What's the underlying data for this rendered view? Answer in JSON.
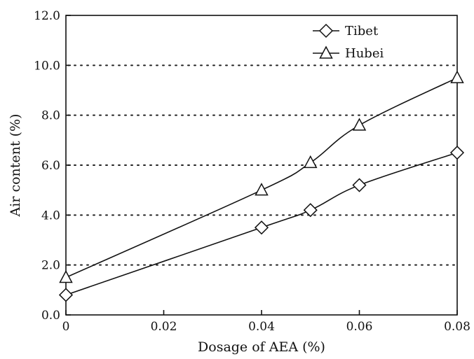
{
  "chart_data": {
    "type": "line",
    "xlabel": "Dosage of AEA (%)",
    "ylabel": "Air content (%)",
    "xlim": [
      0,
      0.08
    ],
    "ylim": [
      0,
      12
    ],
    "x_ticks": [
      "0",
      "0.02",
      "0.04",
      "0.06",
      "0.08"
    ],
    "y_ticks": [
      "0.0",
      "2.0",
      "4.0",
      "6.0",
      "8.0",
      "10.0",
      "12.0"
    ],
    "grid": "horizontal dotted",
    "legend_position": "top-right",
    "series": [
      {
        "name": "Tibet",
        "marker": "diamond",
        "x": [
          0,
          0.04,
          0.05,
          0.06,
          0.08
        ],
        "values": [
          0.8,
          3.5,
          4.2,
          5.2,
          6.5
        ]
      },
      {
        "name": "Hubei",
        "marker": "triangle",
        "x": [
          0,
          0.04,
          0.05,
          0.06,
          0.08
        ],
        "values": [
          1.5,
          5.0,
          6.1,
          7.6,
          9.5
        ]
      }
    ]
  }
}
